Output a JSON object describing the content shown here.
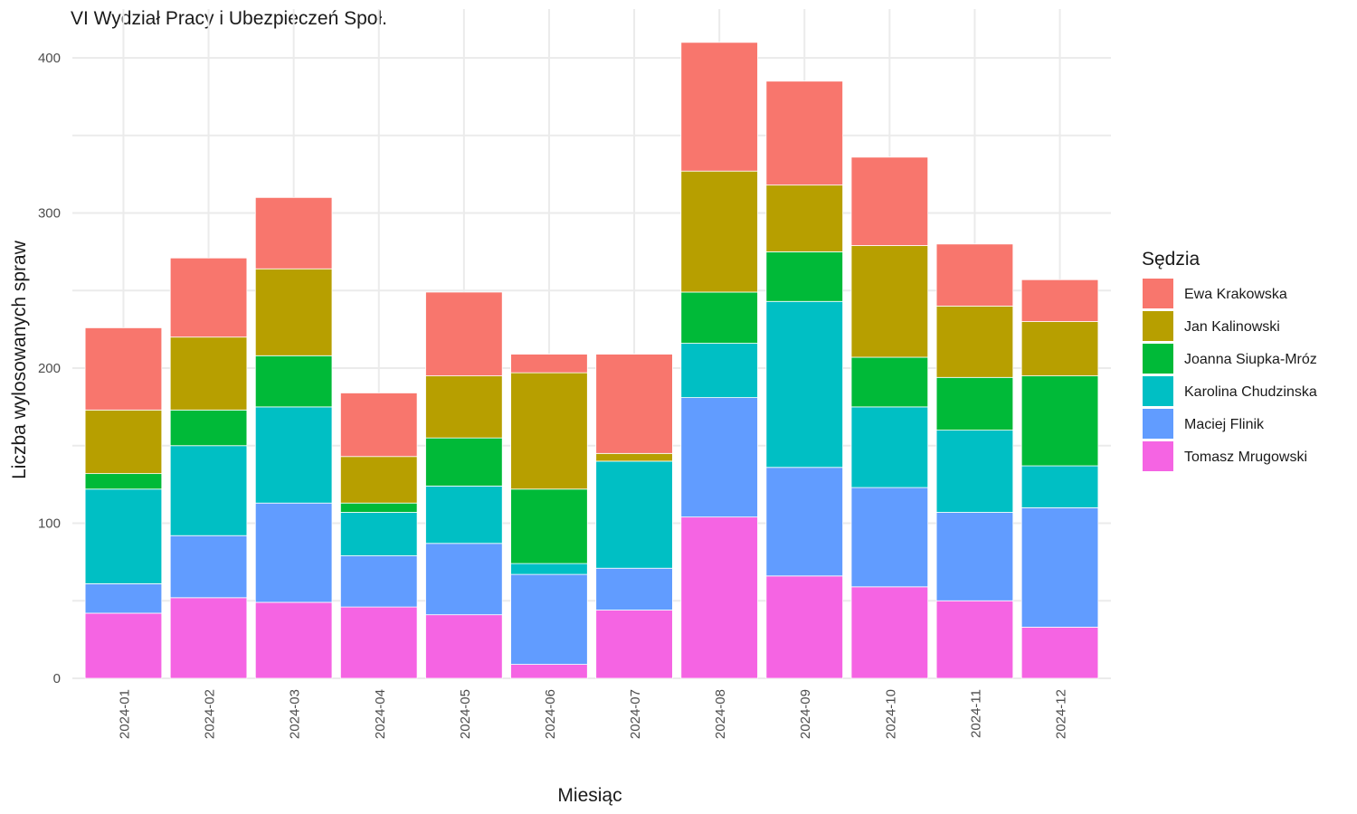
{
  "chart_data": {
    "type": "bar",
    "stacked": true,
    "title": "VI Wydział Pracy i Ubezpieczeń Społ.",
    "xlabel": "Miesiąc",
    "ylabel": "Liczba wylosowanych spraw",
    "ylim": [
      0,
      410
    ],
    "yticks": [
      0,
      100,
      200,
      300,
      400
    ],
    "grid": true,
    "legend_title": "Sędzia",
    "legend_position": "right",
    "categories": [
      "2024-01",
      "2024-02",
      "2024-03",
      "2024-04",
      "2024-05",
      "2024-06",
      "2024-07",
      "2024-08",
      "2024-09",
      "2024-10",
      "2024-11",
      "2024-12"
    ],
    "series": [
      {
        "name": "Tomasz Mrugowski",
        "color": "#F564E3",
        "values": [
          42,
          52,
          49,
          46,
          41,
          9,
          44,
          104,
          66,
          59,
          50,
          33
        ]
      },
      {
        "name": "Maciej Flinik",
        "color": "#619CFF",
        "values": [
          19,
          40,
          64,
          33,
          46,
          58,
          27,
          77,
          70,
          64,
          57,
          77
        ]
      },
      {
        "name": "Karolina Chudzinska",
        "color": "#00BFC4",
        "values": [
          61,
          58,
          62,
          28,
          37,
          7,
          69,
          35,
          107,
          52,
          53,
          27
        ]
      },
      {
        "name": "Joanna Siupka-Mróz",
        "color": "#00BA38",
        "values": [
          10,
          23,
          33,
          6,
          31,
          48,
          0,
          33,
          32,
          32,
          34,
          58
        ]
      },
      {
        "name": "Jan Kalinowski",
        "color": "#B79F00",
        "values": [
          41,
          47,
          56,
          30,
          40,
          75,
          5,
          78,
          43,
          72,
          46,
          35
        ]
      },
      {
        "name": "Ewa Krakowska",
        "color": "#F8766D",
        "values": [
          53,
          51,
          46,
          41,
          54,
          12,
          64,
          83,
          67,
          57,
          40,
          27
        ]
      }
    ],
    "legend_order": [
      "Ewa Krakowska",
      "Jan Kalinowski",
      "Joanna Siupka-Mróz",
      "Karolina Chudzinska",
      "Maciej Flinik",
      "Tomasz Mrugowski"
    ]
  }
}
